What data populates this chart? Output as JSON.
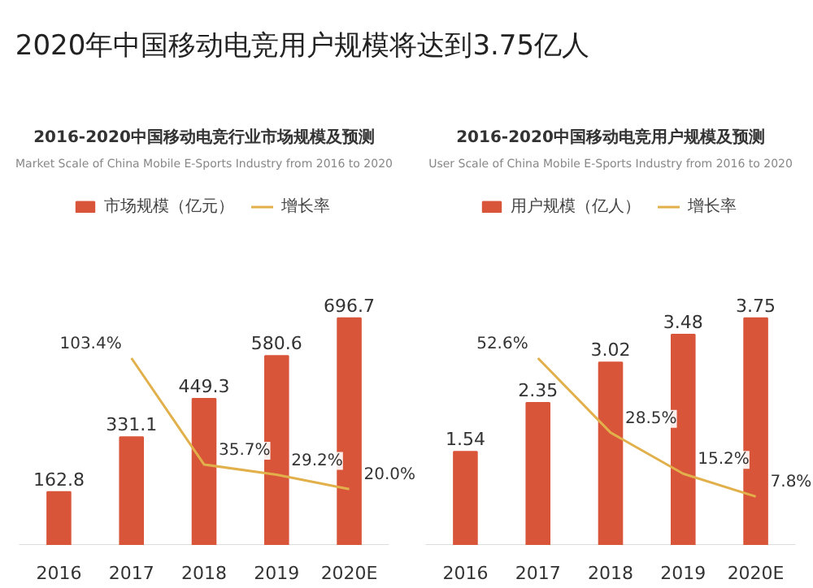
{
  "chart_data": [
    {
      "type": "bar",
      "title": "2016-2020中国移动电竞行业市场规模及预测",
      "subtitle": "Market Scale of China Mobile E-Sports Industry from 2016 to 2020",
      "annotations": [
        "2020年中国移动电竞用户规模将达到3.75亿人"
      ],
      "categories": [
        "2016",
        "2017",
        "2018",
        "2019",
        "2020E"
      ],
      "legend": "top",
      "data_labels": true,
      "series": [
        {
          "name": "市场规模（亿元）",
          "type": "bar",
          "color": "#d9553a",
          "values": [
            162.8,
            331.1,
            449.3,
            580.6,
            696.7
          ]
        },
        {
          "name": "增长率",
          "type": "line",
          "axis": "y2",
          "color": "#e2b04a",
          "values": [
            null,
            103.4,
            35.7,
            29.2,
            20.0
          ],
          "value_labels": [
            null,
            "103.4%",
            "35.7%",
            "29.2%",
            "20.0%"
          ]
        }
      ]
    },
    {
      "type": "bar",
      "title": "2016-2020中国移动电竞用户规模及预测",
      "subtitle": "User Scale of China Mobile E-Sports Industry from 2016 to 2020",
      "categories": [
        "2016",
        "2017",
        "2018",
        "2019",
        "2020E"
      ],
      "legend": "top",
      "data_labels": true,
      "series": [
        {
          "name": "用户规模（亿人）",
          "type": "bar",
          "color": "#d9553a",
          "values": [
            1.54,
            2.35,
            3.02,
            3.48,
            3.75
          ]
        },
        {
          "name": "增长率",
          "type": "line",
          "axis": "y2",
          "color": "#e2b04a",
          "values": [
            null,
            52.6,
            28.5,
            15.2,
            7.8
          ],
          "value_labels": [
            null,
            "52.6%",
            "28.5%",
            "15.2%",
            "7.8%"
          ]
        }
      ]
    }
  ]
}
